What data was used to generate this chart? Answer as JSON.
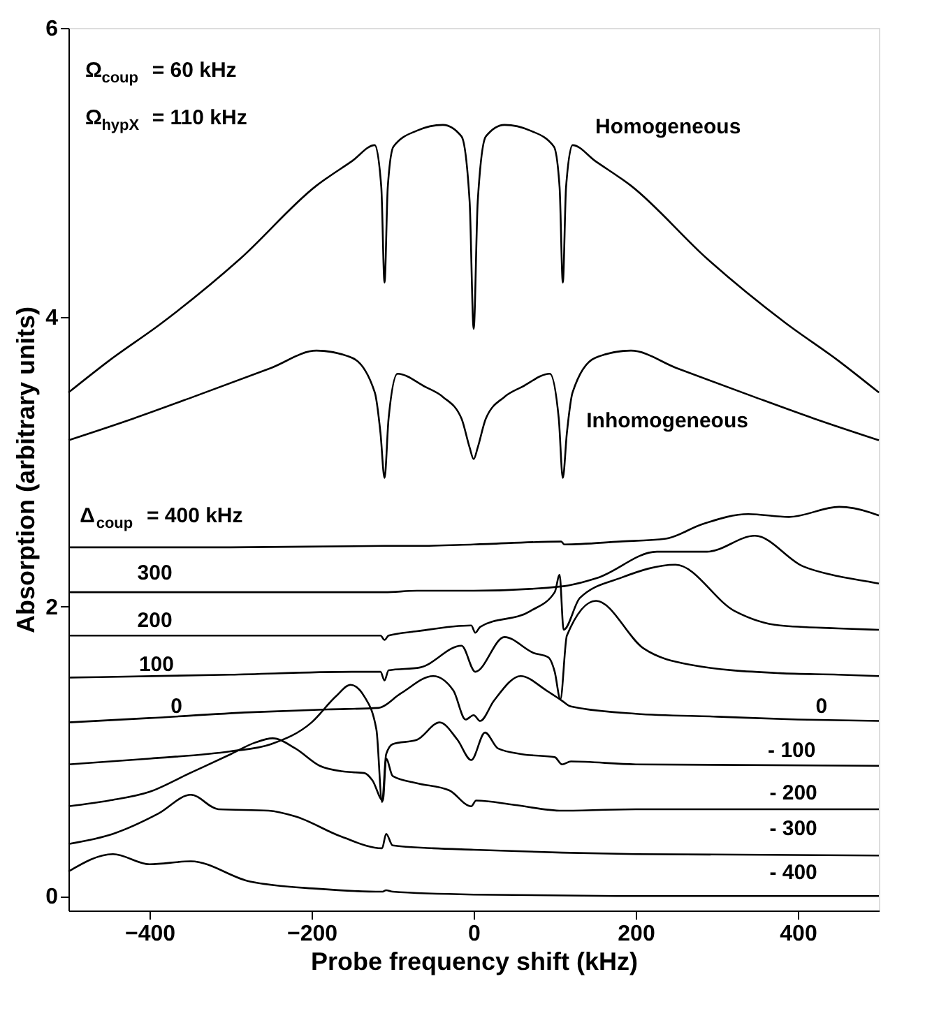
{
  "chart_data": {
    "type": "line",
    "xlabel": "Probe frequency shift (kHz)",
    "ylabel": "Absorption (arbitrary units)",
    "xlim": [
      -500,
      500
    ],
    "ylim": [
      -0.1,
      6
    ],
    "xticks": [
      -400,
      -200,
      0,
      200,
      400
    ],
    "yticks": [
      0,
      2,
      4,
      6
    ],
    "grid": false,
    "legend": false,
    "marker": "none",
    "line_style": "solid",
    "series": [
      {
        "name": "Homogeneous",
        "color": "#000000",
        "x": [
          -500,
          -450,
          -385,
          -289,
          -194,
          -150,
          -122,
          -114,
          -110,
          -106,
          -99,
          -70,
          -38,
          -15,
          -5,
          0,
          5,
          15,
          38,
          70,
          99,
          106,
          110,
          114,
          122,
          150,
          194,
          289,
          385,
          450,
          500
        ],
        "values": [
          3.48,
          3.7,
          3.96,
          4.4,
          4.91,
          5.08,
          5.19,
          4.9,
          4.24,
          4.9,
          5.18,
          5.29,
          5.33,
          5.25,
          4.8,
          3.92,
          4.8,
          5.25,
          5.33,
          5.29,
          5.18,
          4.9,
          4.24,
          4.9,
          5.19,
          5.08,
          4.91,
          4.4,
          3.96,
          3.7,
          3.48
        ]
      },
      {
        "name": "Inhomogeneous",
        "color": "#000000",
        "x": [
          -500,
          -420,
          -346,
          -250,
          -194,
          -150,
          -122,
          -115,
          -110,
          -105,
          -94,
          -60,
          -38,
          -15,
          -5,
          0,
          5,
          15,
          38,
          60,
          94,
          105,
          110,
          115,
          122,
          150,
          194,
          250,
          346,
          420,
          500
        ],
        "values": [
          3.15,
          3.3,
          3.45,
          3.65,
          3.77,
          3.72,
          3.48,
          3.2,
          2.89,
          3.3,
          3.61,
          3.52,
          3.45,
          3.3,
          3.1,
          3.02,
          3.1,
          3.3,
          3.45,
          3.52,
          3.61,
          3.3,
          2.89,
          3.2,
          3.48,
          3.72,
          3.77,
          3.65,
          3.45,
          3.3,
          3.15
        ]
      },
      {
        "name": "Δ$_{coup}$ = 400 kHz",
        "color": "#000000",
        "x": [
          -500,
          -300,
          -110,
          -70,
          0,
          108,
          112,
          180,
          237,
          282,
          339,
          389,
          451,
          490,
          500
        ],
        "values": [
          2.41,
          2.41,
          2.42,
          2.42,
          2.43,
          2.45,
          2.43,
          2.45,
          2.47,
          2.57,
          2.64,
          2.62,
          2.69,
          2.65,
          2.63
        ]
      },
      {
        "name": "300",
        "color": "#000000",
        "x": [
          -500,
          -300,
          -110,
          -70,
          0,
          108,
          153,
          226,
          288,
          347,
          406,
          450,
          490,
          500
        ],
        "values": [
          2.1,
          2.1,
          2.1,
          2.11,
          2.11,
          2.14,
          2.2,
          2.38,
          2.38,
          2.49,
          2.28,
          2.21,
          2.17,
          2.16
        ]
      },
      {
        "name": "200",
        "color": "#000000",
        "x": [
          -500,
          -300,
          -115,
          -110,
          -105,
          -70,
          -3,
          2,
          8,
          70,
          100,
          106,
          111,
          131,
          182,
          249,
          322,
          378,
          450,
          500
        ],
        "values": [
          1.8,
          1.8,
          1.8,
          1.77,
          1.8,
          1.83,
          1.87,
          1.82,
          1.86,
          1.97,
          2.1,
          2.22,
          1.84,
          2.06,
          2.2,
          2.29,
          1.97,
          1.87,
          1.85,
          1.84
        ]
      },
      {
        "name": "100",
        "color": "#000000",
        "x": [
          -500,
          -300,
          -150,
          -115,
          -110,
          -105,
          -66,
          -15,
          2,
          38,
          74,
          92,
          100,
          107,
          115,
          151,
          210,
          266,
          378,
          450,
          500
        ],
        "values": [
          1.51,
          1.53,
          1.55,
          1.55,
          1.49,
          1.56,
          1.58,
          1.73,
          1.55,
          1.79,
          1.68,
          1.65,
          1.55,
          1.36,
          1.8,
          2.04,
          1.71,
          1.6,
          1.54,
          1.53,
          1.52
        ]
      },
      {
        "name": "0",
        "color": "#000000",
        "x": [
          -500,
          -400,
          -276,
          -180,
          -118,
          -90,
          -50,
          -25,
          -10,
          0,
          8,
          25,
          58,
          90,
          109,
          120,
          200,
          300,
          400,
          500
        ],
        "values": [
          1.2,
          1.23,
          1.27,
          1.29,
          1.3,
          1.4,
          1.52,
          1.42,
          1.22,
          1.25,
          1.21,
          1.35,
          1.52,
          1.42,
          1.35,
          1.31,
          1.26,
          1.24,
          1.22,
          1.21
        ]
      },
      {
        "name": "- 100",
        "color": "#000000",
        "x": [
          -500,
          -400,
          -300,
          -250,
          -200,
          -170,
          -152,
          -135,
          -120,
          -113,
          -108,
          -100,
          -70,
          -42,
          -20,
          -3,
          14,
          30,
          60,
          100,
          109,
          120,
          200,
          500
        ],
        "values": [
          0.91,
          0.95,
          1.0,
          1.05,
          1.2,
          1.38,
          1.46,
          1.38,
          1.15,
          0.65,
          0.98,
          1.05,
          1.08,
          1.2,
          1.08,
          0.94,
          1.13,
          1.02,
          0.98,
          0.96,
          0.91,
          0.93,
          0.91,
          0.9
        ]
      },
      {
        "name": "- 200",
        "color": "#000000",
        "x": [
          -500,
          -450,
          -400,
          -350,
          -300,
          -270,
          -248,
          -220,
          -190,
          -160,
          -135,
          -125,
          -112,
          -108,
          -100,
          -70,
          -30,
          -3,
          3,
          50,
          109,
          200,
          500
        ],
        "values": [
          0.62,
          0.66,
          0.72,
          0.85,
          0.98,
          1.06,
          1.09,
          1.02,
          0.9,
          0.86,
          0.85,
          0.8,
          0.66,
          0.95,
          0.83,
          0.78,
          0.73,
          0.62,
          0.66,
          0.63,
          0.59,
          0.6,
          0.6
        ]
      },
      {
        "name": "- 300",
        "color": "#000000",
        "x": [
          -500,
          -445,
          -389,
          -349,
          -315,
          -253,
          -220,
          -163,
          -113,
          -108,
          -100,
          -50,
          0,
          109,
          200,
          500
        ],
        "values": [
          0.36,
          0.43,
          0.57,
          0.7,
          0.6,
          0.59,
          0.55,
          0.41,
          0.33,
          0.43,
          0.35,
          0.33,
          0.32,
          0.3,
          0.29,
          0.28
        ]
      },
      {
        "name": "- 400",
        "color": "#000000",
        "x": [
          -500,
          -445,
          -400,
          -349,
          -276,
          -192,
          -113,
          -108,
          -100,
          0,
          200,
          500
        ],
        "values": [
          0.17,
          0.29,
          0.22,
          0.24,
          0.1,
          0.05,
          0.03,
          0.04,
          0.03,
          0.01,
          0.0,
          0.0
        ]
      }
    ],
    "annotations": [
      "Ω$_{coup}$ = 60 kHz",
      "Ω$_{hypX}$ = 110 kHz"
    ]
  }
}
